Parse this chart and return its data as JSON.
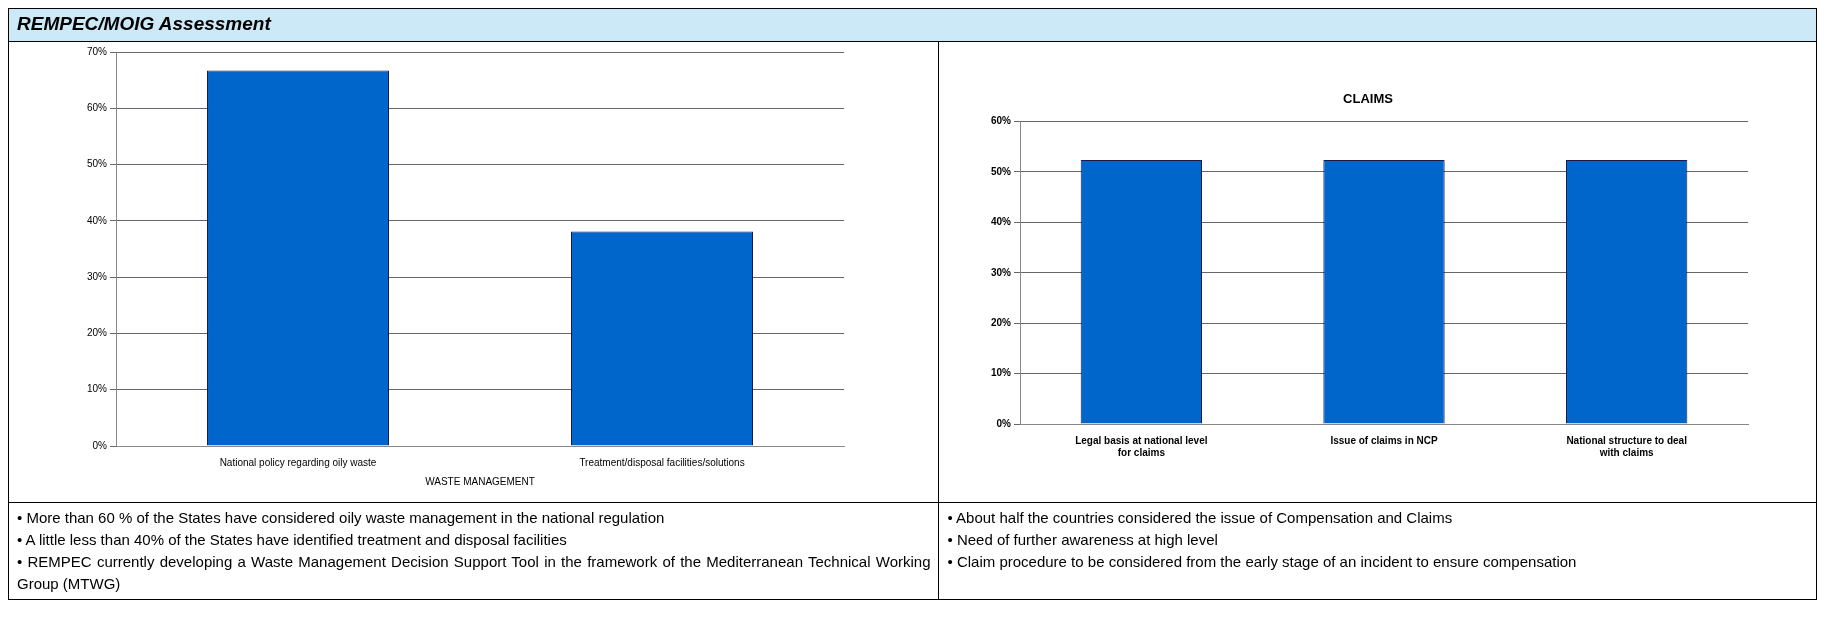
{
  "chart_data": [
    {
      "type": "other",
      "title": "REMPEC/MOIG Assessment"
    },
    {
      "type": "bar",
      "categories": [
        "National policy regarding oily waste",
        "Treatment/disposal facilities/solutions"
      ],
      "values": [
        66.7,
        38.1
      ],
      "color": "#0066cc",
      "xlabel": "WASTE MANAGEMENT",
      "ylim": [
        0,
        70
      ],
      "yticks": [
        {
          "value": 0,
          "label": "0%"
        },
        {
          "value": 10,
          "label": "10%"
        },
        {
          "value": 20,
          "label": "20%"
        },
        {
          "value": 30,
          "label": "30%"
        },
        {
          "value": 40,
          "label": "40%"
        },
        {
          "value": 50,
          "label": "50%"
        },
        {
          "value": 60,
          "label": "60%"
        },
        {
          "value": 70,
          "label": "70%"
        }
      ],
      "grid": "y",
      "annotations": [
        "• More than 60 % of the States have considered oily waste management in the national regulation",
        "• A little less than 40% of the States have identified treatment and disposal facilities",
        "• REMPEC currently developing a Waste Management Decision Support Tool in the framework of the Mediterranean Technical Working Group (MTWG)"
      ]
    },
    {
      "type": "bar",
      "title": "CLAIMS",
      "categories": [
        "Legal basis at national level for claims",
        "Issue of claims in NCP",
        "National structure to deal with claims"
      ],
      "values": [
        52.4,
        52.4,
        52.4
      ],
      "color": "#0066cc",
      "ylim": [
        0,
        60
      ],
      "yticks": [
        {
          "value": 0,
          "label": "0%"
        },
        {
          "value": 10,
          "label": "10%"
        },
        {
          "value": 20,
          "label": "20%"
        },
        {
          "value": 30,
          "label": "30%"
        },
        {
          "value": 40,
          "label": "40%"
        },
        {
          "value": 50,
          "label": "50%"
        },
        {
          "value": 60,
          "label": "60%"
        }
      ],
      "grid": "y",
      "annotations": [
        "• About half the countries considered the issue of Compensation and Claims",
        "• Need of further awareness at high level",
        "• Claim procedure to be considered from the early stage of an incident to ensure compensation"
      ]
    }
  ]
}
